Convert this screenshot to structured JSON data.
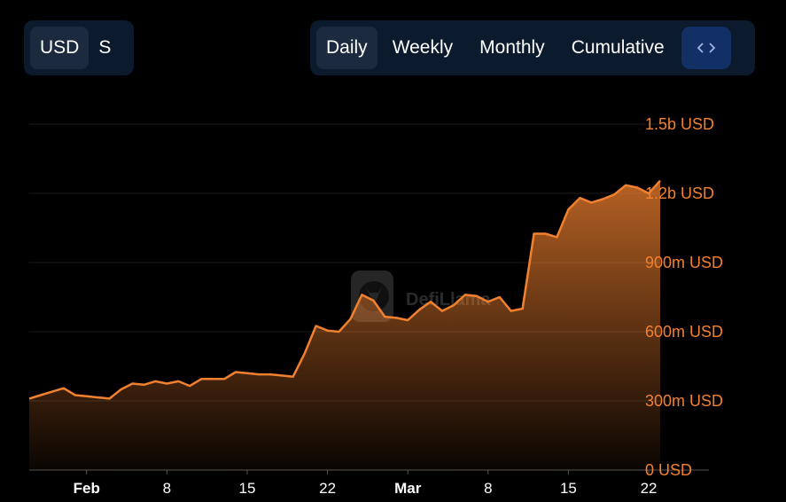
{
  "controls": {
    "currency": {
      "options": [
        "USD",
        "S"
      ],
      "selected": "USD"
    },
    "period": {
      "options": [
        "Daily",
        "Weekly",
        "Monthly",
        "Cumulative"
      ],
      "selected": "Daily"
    },
    "embed_icon": "code-brackets-icon"
  },
  "watermark": "DefiLlama",
  "colors": {
    "line": "#f2812f",
    "area": "#f2812f",
    "accent_bg": "#123066"
  },
  "chart_data": {
    "type": "area",
    "x_unit": "day",
    "x": [
      "Jan 27",
      "Jan 28",
      "Jan 29",
      "Jan 30",
      "Jan 31",
      "Feb 1",
      "Feb 2",
      "Feb 3",
      "Feb 4",
      "Feb 5",
      "Feb 6",
      "Feb 7",
      "Feb 8",
      "Feb 9",
      "Feb 10",
      "Feb 11",
      "Feb 12",
      "Feb 13",
      "Feb 14",
      "Feb 15",
      "Feb 16",
      "Feb 17",
      "Feb 18",
      "Feb 19",
      "Feb 20",
      "Feb 21",
      "Feb 22",
      "Feb 23",
      "Feb 24",
      "Feb 25",
      "Feb 26",
      "Feb 27",
      "Feb 28",
      "Mar 1",
      "Mar 2",
      "Mar 3",
      "Mar 4",
      "Mar 5",
      "Mar 6",
      "Mar 7",
      "Mar 8",
      "Mar 9",
      "Mar 10",
      "Mar 11",
      "Mar 12",
      "Mar 13",
      "Mar 14",
      "Mar 15",
      "Mar 16",
      "Mar 17",
      "Mar 18",
      "Mar 19",
      "Mar 20",
      "Mar 21",
      "Mar 22",
      "Mar 23"
    ],
    "series": [
      {
        "values": [
          310,
          325,
          340,
          355,
          325,
          320,
          315,
          310,
          350,
          375,
          370,
          385,
          375,
          385,
          365,
          395,
          395,
          395,
          425,
          420,
          415,
          415,
          410,
          405,
          505,
          625,
          605,
          600,
          655,
          760,
          735,
          665,
          660,
          650,
          695,
          730,
          690,
          715,
          760,
          755,
          730,
          750,
          690,
          700,
          1025,
          1025,
          1010,
          1130,
          1180,
          1160,
          1175,
          1195,
          1235,
          1225,
          1200,
          1255
        ]
      }
    ],
    "y_ticks": [
      "0 USD",
      "300m USD",
      "600m USD",
      "900m USD",
      "1.2b USD",
      "1.5b USD"
    ],
    "y_tick_values": [
      0,
      300,
      600,
      900,
      1200,
      1500
    ],
    "ylim": [
      0,
      1500
    ],
    "x_tick_labels": [
      "Feb",
      "8",
      "15",
      "22",
      "Mar",
      "8",
      "15",
      "22"
    ],
    "x_tick_dates": [
      "Feb 1",
      "Feb 8",
      "Feb 15",
      "Feb 22",
      "Mar 1",
      "Mar 8",
      "Mar 15",
      "Mar 22"
    ],
    "x_tick_bold": [
      "Feb",
      "Mar"
    ],
    "grid": true,
    "y_axis_position": "right"
  }
}
